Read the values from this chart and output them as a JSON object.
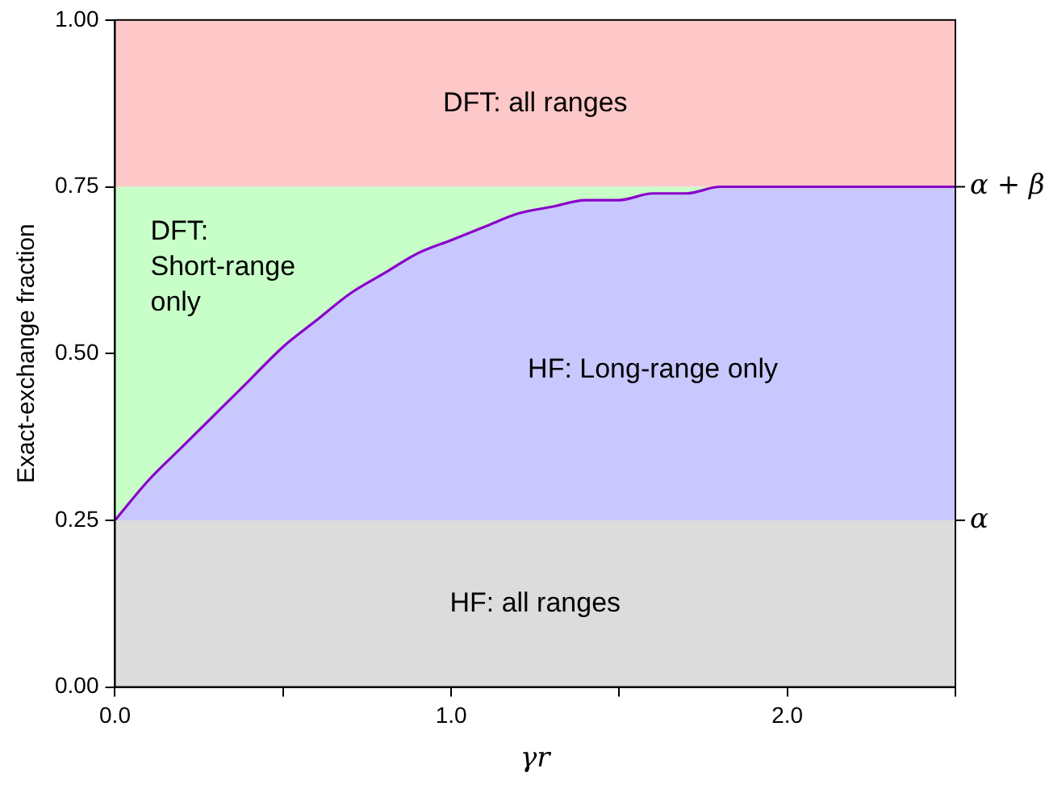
{
  "chart_data": {
    "type": "area",
    "xlabel": "γr",
    "ylabel": "Exact-exchange fraction",
    "x": [
      0,
      0.1,
      0.2,
      0.3,
      0.4,
      0.5,
      0.6,
      0.7,
      0.8,
      0.9,
      1.0,
      1.1,
      1.2,
      1.3,
      1.4,
      1.5,
      1.6,
      1.7,
      1.8,
      1.9,
      2.0,
      2.2,
      2.5
    ],
    "series": [
      {
        "name": "HF: Long-range only",
        "color": "#c8c8ff",
        "values": [
          0.25,
          0.31,
          0.36,
          0.41,
          0.46,
          0.51,
          0.55,
          0.59,
          0.62,
          0.65,
          0.67,
          0.69,
          0.71,
          0.72,
          0.73,
          0.73,
          0.74,
          0.74,
          0.75,
          0.75,
          0.75,
          0.75,
          0.75
        ]
      }
    ],
    "xlim": [
      0,
      2.5
    ],
    "xticks": [
      {
        "value": 0,
        "label": "0.0"
      },
      {
        "value": 0.5,
        "label": null
      },
      {
        "value": 1,
        "label": "1.0"
      },
      {
        "value": 1.5,
        "label": null
      },
      {
        "value": 2,
        "label": "2.0"
      },
      {
        "value": 2.5,
        "label": null
      }
    ],
    "ylim": [
      0,
      1
    ],
    "yticks": [
      {
        "value": 0,
        "label": "0.00"
      },
      {
        "value": 0.25,
        "label": "0.25"
      },
      {
        "value": 0.5,
        "label": "0.50"
      },
      {
        "value": 0.75,
        "label": "0.75"
      },
      {
        "value": 1,
        "label": "1.00"
      }
    ],
    "ref_lines": [
      {
        "axis": "y",
        "value": 0.25,
        "label": "α"
      },
      {
        "axis": "y",
        "value": 0.75,
        "label": "α + β"
      }
    ],
    "bands": [
      {
        "axis": "y",
        "from": 0,
        "to": 0.25,
        "label": "HF: all ranges",
        "color": "#dcdcdc"
      },
      {
        "axis": "y",
        "from": 0.25,
        "to": 0.75,
        "label": "DFT: Short-range only",
        "color": "#c8ffc8"
      },
      {
        "axis": "y",
        "from": 0.75,
        "to": 1,
        "label": "DFT: all ranges",
        "color": "#ffc8c8"
      }
    ],
    "grid": false,
    "legend": false,
    "marker": "none",
    "line_style": "solid"
  }
}
